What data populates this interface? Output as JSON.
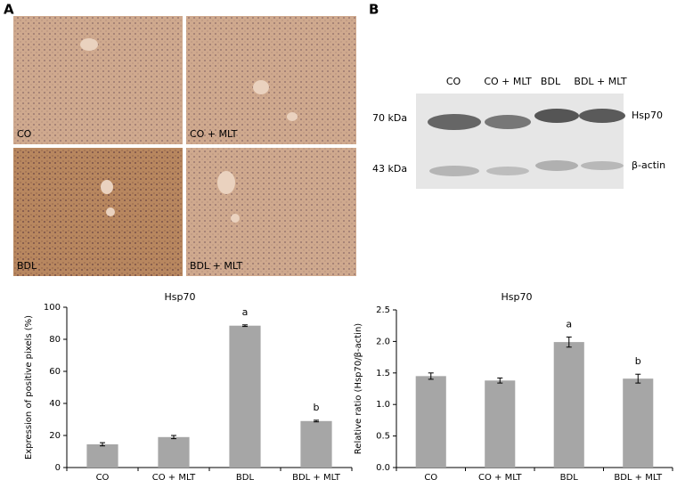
{
  "panels": {
    "a_label": "A",
    "b_label": "B",
    "micrographs": [
      "CO",
      "CO + MLT",
      "BDL",
      "BDL + MLT"
    ],
    "blot": {
      "lanes": [
        "CO",
        "CO + MLT",
        "BDL",
        "BDL + MLT"
      ],
      "sizes": [
        "70 kDa",
        "43 kDa"
      ],
      "proteins": [
        "Hsp70",
        "β-actin"
      ]
    }
  },
  "chart_data": [
    {
      "type": "bar",
      "title": "Hsp70",
      "y_label": "Expression of positive pixels (%)",
      "categories": [
        "CO",
        "CO + MLT",
        "BDL",
        "BDL + MLT"
      ],
      "values": [
        14.5,
        19,
        88.5,
        29
      ],
      "errors": [
        1,
        1,
        0.5,
        0.5
      ],
      "annotations": [
        null,
        null,
        "a",
        "b"
      ],
      "color": "#a6a6a6",
      "ylim": [
        0,
        100
      ],
      "yticks": [
        0,
        20,
        40,
        60,
        80,
        100
      ]
    },
    {
      "type": "bar",
      "title": "Hsp70",
      "y_label": "Relative ratio (Hsp70/β-actin)",
      "categories": [
        "CO",
        "CO + MLT",
        "BDL",
        "BDL + MLT"
      ],
      "values": [
        1.45,
        1.38,
        1.99,
        1.41
      ],
      "errors": [
        0.05,
        0.04,
        0.08,
        0.07
      ],
      "annotations": [
        null,
        null,
        "a",
        "b"
      ],
      "color": "#a6a6a6",
      "ylim": [
        0,
        2.5
      ],
      "yticks": [
        {
          "value": 0,
          "label": "0.0"
        },
        {
          "value": 0.5,
          "label": "0.5"
        },
        {
          "value": 1,
          "label": "1.0"
        },
        {
          "value": 1.5,
          "label": "1.5"
        },
        {
          "value": 2,
          "label": "2.0"
        },
        {
          "value": 2.5,
          "label": "2.5"
        }
      ]
    }
  ]
}
